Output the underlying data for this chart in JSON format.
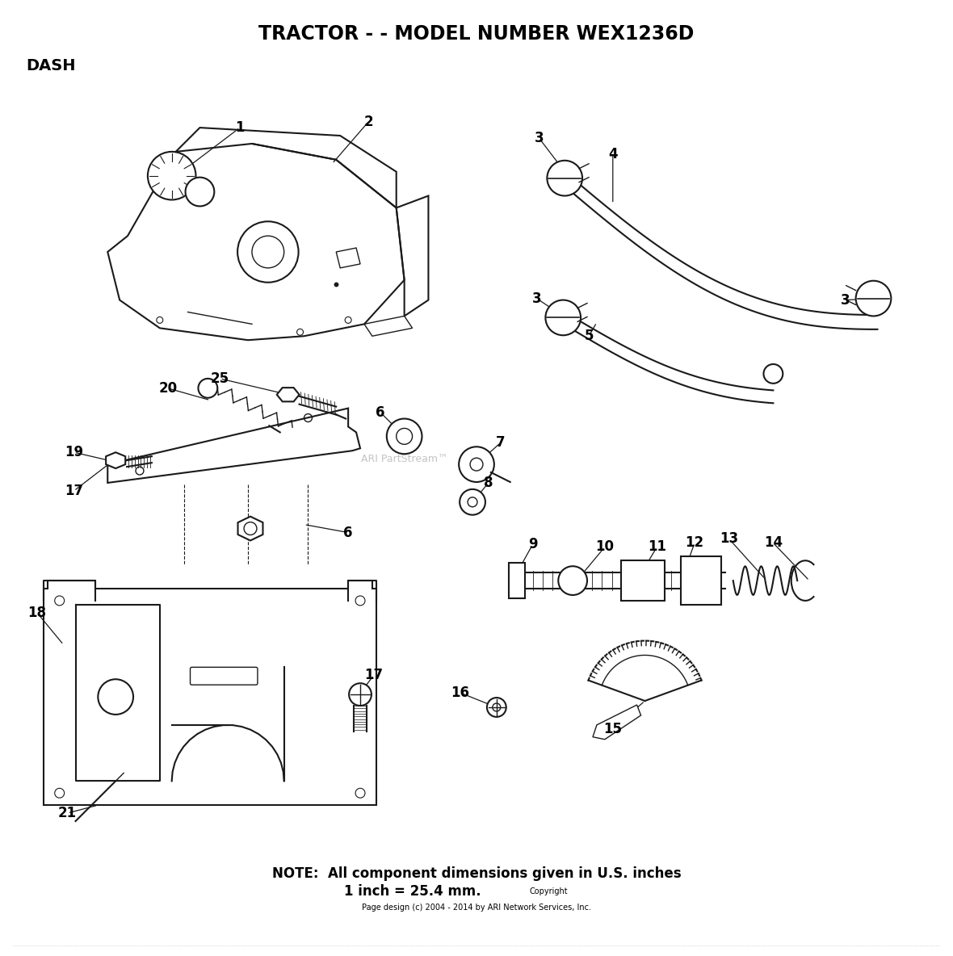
{
  "title": "TRACTOR - - MODEL NUMBER WEX1236D",
  "subtitle": "DASH",
  "note_line1": "NOTE:  All component dimensions given in U.S. inches",
  "note_line2": "1 inch = 25.4 mm.",
  "copyright_line1": "Copyright",
  "copyright_line2": "Page design (c) 2004 - 2014 by ARI Network Services, Inc.",
  "watermark": "ARI PartStream™",
  "bg_color": "#ffffff",
  "line_color": "#1a1a1a",
  "label_color": "#000000",
  "figw": 11.8,
  "figh": 11.84,
  "dpi": 100
}
